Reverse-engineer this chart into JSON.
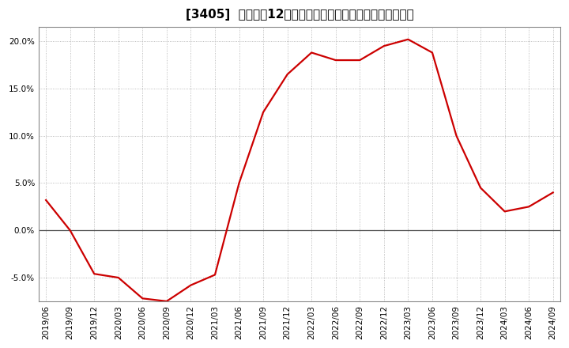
{
  "title": "[3405]  売上高の12か月移動合計の対前年同期増減率の推移",
  "line_color": "#cc0000",
  "background_color": "#ffffff",
  "plot_bg_color": "#ffffff",
  "grid_color": "#aaaaaa",
  "spine_color": "#888888",
  "x_labels": [
    "2019/06",
    "2019/09",
    "2019/12",
    "2020/03",
    "2020/06",
    "2020/09",
    "2020/12",
    "2021/03",
    "2021/06",
    "2021/09",
    "2021/12",
    "2022/03",
    "2022/06",
    "2022/09",
    "2022/12",
    "2023/03",
    "2023/06",
    "2023/09",
    "2023/12",
    "2024/03",
    "2024/06",
    "2024/09"
  ],
  "y_values": [
    3.2,
    0.0,
    -4.6,
    -5.0,
    -7.2,
    -7.5,
    -5.8,
    -4.7,
    5.0,
    12.5,
    16.5,
    18.8,
    18.0,
    18.0,
    19.5,
    20.2,
    18.8,
    10.0,
    4.5,
    2.0,
    2.5,
    4.0
  ],
  "ylim": [
    -7.5,
    21.5
  ],
  "yticks": [
    -5.0,
    0.0,
    5.0,
    10.0,
    15.0,
    20.0
  ],
  "title_fontsize": 11,
  "tick_fontsize": 7.5,
  "linewidth": 1.6
}
